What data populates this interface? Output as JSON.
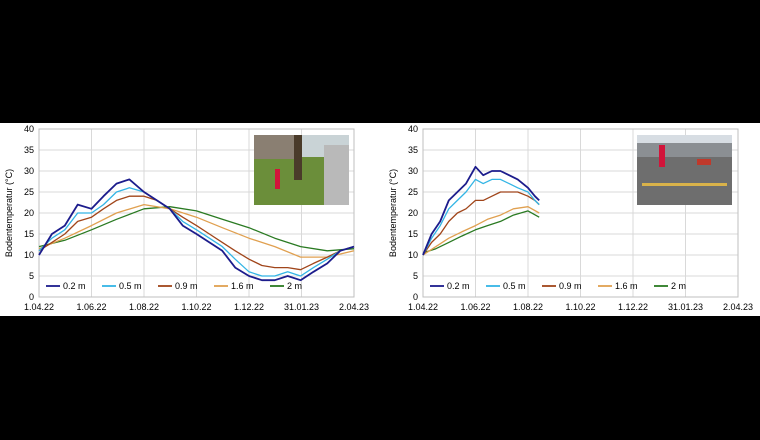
{
  "colors": {
    "s02": "#1c1c8c",
    "s05": "#33b5e5",
    "s09": "#a0451a",
    "s16": "#e0a050",
    "s20": "#2a7a22",
    "grid": "#d9d9d9",
    "photo_grass": "#6b8e3a",
    "photo_road": "#6e6e6e"
  },
  "chart_data": [
    {
      "type": "line",
      "ylabel": "Bodentemperatur (°C)",
      "xlabel": "",
      "ylim": [
        0,
        40
      ],
      "yticks": [
        "0",
        "5",
        "10",
        "15",
        "20",
        "25",
        "30",
        "35",
        "40"
      ],
      "xticks": [
        "1.04.22",
        "1.06.22",
        "1.08.22",
        "1.10.22",
        "1.12.22",
        "31.01.23",
        "2.04.23"
      ],
      "x_range_days": [
        0,
        366
      ],
      "grid": true,
      "legend_position": "bottom-left",
      "photo_icon": "grass-site-photo",
      "series": [
        {
          "name": "0.2 m",
          "color": "#1c1c8c",
          "x": [
            0,
            15,
            30,
            45,
            61,
            75,
            90,
            105,
            122,
            137,
            152,
            167,
            183,
            198,
            213,
            228,
            244,
            259,
            274,
            289,
            304,
            319,
            335,
            350,
            366
          ],
          "y": [
            10,
            15,
            17,
            22,
            21,
            24,
            27,
            28,
            25,
            23,
            21,
            17,
            15,
            13,
            11,
            7,
            5,
            4,
            4,
            5,
            4,
            6,
            8,
            11,
            12
          ]
        },
        {
          "name": "0.5 m",
          "color": "#33b5e5",
          "x": [
            0,
            15,
            30,
            45,
            61,
            75,
            90,
            105,
            122,
            137,
            152,
            167,
            183,
            198,
            213,
            228,
            244,
            259,
            274,
            289,
            304,
            319,
            335,
            350,
            366
          ],
          "y": [
            11,
            14,
            16,
            20,
            20,
            22,
            25,
            26,
            25,
            23,
            21,
            18,
            16,
            14,
            12,
            9,
            6,
            5,
            5,
            6,
            5,
            7,
            9,
            11,
            12
          ]
        },
        {
          "name": "0.9 m",
          "color": "#a0451a",
          "x": [
            0,
            15,
            30,
            45,
            61,
            75,
            90,
            105,
            122,
            137,
            152,
            167,
            183,
            198,
            213,
            228,
            244,
            259,
            274,
            289,
            304,
            319,
            335,
            350,
            366
          ],
          "y": [
            11,
            13,
            15,
            18,
            19,
            21,
            23,
            24,
            24,
            23,
            21,
            19,
            17,
            15,
            13,
            11,
            9,
            7.5,
            7,
            7,
            6.5,
            8,
            9.5,
            11,
            12
          ]
        },
        {
          "name": "1.6 m",
          "color": "#e0a050",
          "x": [
            0,
            30,
            61,
            90,
            122,
            152,
            183,
            213,
            244,
            274,
            304,
            335,
            366
          ],
          "y": [
            11.5,
            14,
            17,
            20,
            22,
            21,
            19,
            16.5,
            14,
            12,
            9.5,
            9.5,
            11
          ]
        },
        {
          "name": "2 m",
          "color": "#2a7a22",
          "x": [
            0,
            30,
            61,
            90,
            122,
            152,
            183,
            213,
            244,
            274,
            304,
            335,
            366
          ],
          "y": [
            12,
            13.5,
            16,
            18.5,
            21,
            21.5,
            20.5,
            18.5,
            16.5,
            14,
            12,
            11,
            11.5
          ]
        }
      ]
    },
    {
      "type": "line",
      "ylabel": "Bodentemperatur (°C)",
      "xlabel": "",
      "ylim": [
        0,
        40
      ],
      "yticks": [
        "0",
        "5",
        "10",
        "15",
        "20",
        "25",
        "30",
        "35",
        "40"
      ],
      "xticks": [
        "1.04.22",
        "1.06.22",
        "1.08.22",
        "1.10.22",
        "1.12.22",
        "31.01.23",
        "2.04.23"
      ],
      "x_range_days": [
        0,
        366
      ],
      "grid": true,
      "legend_position": "bottom-left",
      "photo_icon": "road-site-photo",
      "series": [
        {
          "name": "0.2 m",
          "color": "#1c1c8c",
          "x": [
            0,
            10,
            20,
            30,
            40,
            50,
            61,
            70,
            80,
            90,
            100,
            110,
            122,
            130,
            135
          ],
          "y": [
            10,
            15,
            18,
            23,
            25,
            27,
            31,
            29,
            30,
            30,
            29,
            28,
            26,
            24,
            23
          ]
        },
        {
          "name": "0.5 m",
          "color": "#33b5e5",
          "x": [
            0,
            10,
            20,
            30,
            40,
            50,
            61,
            70,
            80,
            90,
            100,
            110,
            122,
            130,
            135
          ],
          "y": [
            10,
            14,
            17,
            21,
            23,
            25,
            28,
            27,
            28,
            28,
            27,
            26,
            25,
            23,
            22
          ]
        },
        {
          "name": "0.9 m",
          "color": "#a0451a",
          "x": [
            0,
            10,
            20,
            30,
            40,
            50,
            61,
            70,
            80,
            90,
            100,
            110,
            122,
            130,
            135
          ],
          "y": [
            10,
            13,
            15,
            18,
            20,
            21,
            23,
            23,
            24,
            25,
            25,
            25,
            24,
            23,
            22
          ]
        },
        {
          "name": "1.6 m",
          "color": "#e0a050",
          "x": [
            0,
            15,
            30,
            45,
            61,
            75,
            90,
            105,
            122,
            135
          ],
          "y": [
            10,
            12,
            14,
            15.5,
            17,
            18.5,
            19.5,
            21,
            21.5,
            20
          ]
        },
        {
          "name": "2 m",
          "color": "#2a7a22",
          "x": [
            0,
            15,
            30,
            45,
            61,
            75,
            90,
            105,
            122,
            135
          ],
          "y": [
            10.5,
            11.5,
            13,
            14.5,
            16,
            17,
            18,
            19.5,
            20.5,
            19
          ]
        }
      ]
    }
  ]
}
